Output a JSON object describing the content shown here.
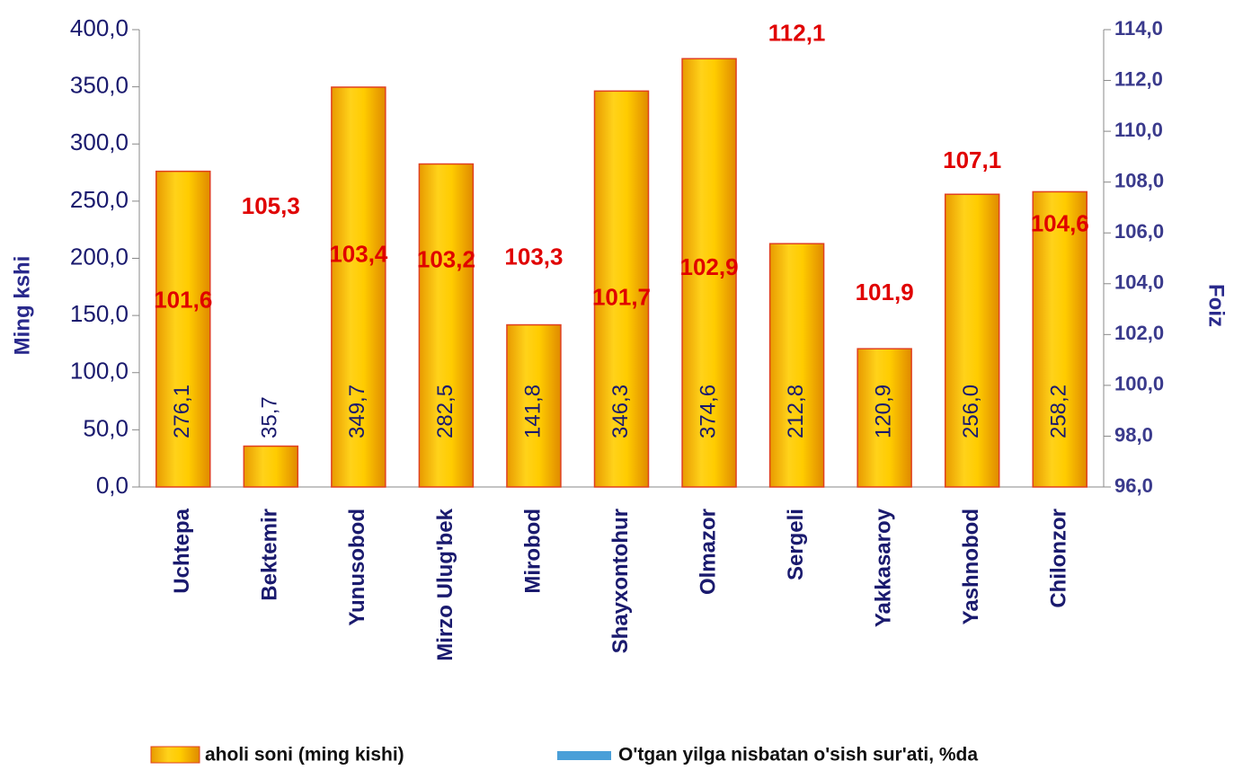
{
  "chart_data": {
    "type": "bar",
    "categories": [
      "Uchtepa",
      "Bektemir",
      "Yunusobod",
      "Mirzo Ulug'bek",
      "Mirobod",
      "Shayxontohur",
      "Olmazor",
      "Sergeli",
      "Yakkasaroy",
      "Yashnobod",
      "Chilonzor"
    ],
    "series": [
      {
        "name": "aholi soni (ming kishi)",
        "type": "bar",
        "color": "#f5b800",
        "values": [
          276.1,
          35.7,
          349.7,
          282.5,
          141.8,
          346.3,
          374.6,
          212.8,
          120.9,
          256.0,
          258.2
        ],
        "value_labels": [
          "276,1",
          "35,7",
          "349,7",
          "282,5",
          "141,8",
          "346,3",
          "374,6",
          "212,8",
          "120,9",
          "256,0",
          "258,2"
        ]
      },
      {
        "name": "O'tgan yilga nisbatan o'sish sur'ati, %da",
        "type": "line",
        "axis": "y2",
        "color": "#4a9fd8",
        "values": [
          101.6,
          105.3,
          103.4,
          103.2,
          103.3,
          101.7,
          102.9,
          112.1,
          101.9,
          107.1,
          104.6
        ],
        "value_labels": [
          "101,6",
          "105,3",
          "103,4",
          "103,2",
          "103,3",
          "101,7",
          "102,9",
          "112,1",
          "101,9",
          "107,1",
          "104,6"
        ]
      }
    ],
    "ylabel": "Ming kshi",
    "y2label": "Foiz",
    "ylim": [
      0,
      400
    ],
    "yticks": [
      {
        "value": 0,
        "label": "0,0"
      },
      {
        "value": 50,
        "label": "50,0"
      },
      {
        "value": 100,
        "label": "100,0"
      },
      {
        "value": 150,
        "label": "150,0"
      },
      {
        "value": 200,
        "label": "200,0"
      },
      {
        "value": 250,
        "label": "250,0"
      },
      {
        "value": 300,
        "label": "300,0"
      },
      {
        "value": 350,
        "label": "350,0"
      },
      {
        "value": 400,
        "label": "400,0"
      }
    ],
    "y2lim": [
      96,
      114
    ],
    "y2ticks": [
      {
        "value": 96,
        "label": "96,0"
      },
      {
        "value": 98,
        "label": "98,0"
      },
      {
        "value": 100,
        "label": "100,0"
      },
      {
        "value": 102,
        "label": "102,0"
      },
      {
        "value": 104,
        "label": "104,0"
      },
      {
        "value": 106,
        "label": "106,0"
      },
      {
        "value": 108,
        "label": "108,0"
      },
      {
        "value": 110,
        "label": "110,0"
      },
      {
        "value": 112,
        "label": "112,0"
      },
      {
        "value": 114,
        "label": "114,0"
      }
    ],
    "legend": "bottom"
  }
}
